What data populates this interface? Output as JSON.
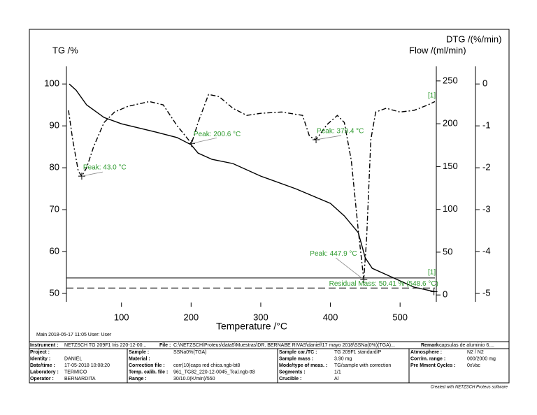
{
  "chart_data": {
    "type": "line",
    "x_label": "Temperature /°C",
    "y_label": "TG /%",
    "y2_label": "DTG /(%/min)",
    "y3_label": "Flow /(ml/min)",
    "xlim": [
      21,
      550
    ],
    "xticks": [
      100,
      200,
      300,
      400,
      500
    ],
    "ylim": [
      48,
      104.2
    ],
    "yticks": [
      50,
      60,
      70,
      80,
      90,
      100
    ],
    "y2lim": [
      -5.2,
      0.42
    ],
    "y2ticks": [
      0,
      -1,
      -2,
      -3,
      -4,
      -5
    ],
    "y3lim": [
      -8,
      267
    ],
    "y3ticks": [
      0,
      50,
      100,
      150,
      200,
      250
    ],
    "series": [
      {
        "axis": "y",
        "style": "solid",
        "color": "#000000",
        "x": [
          25,
          35,
          50,
          75,
          100,
          150,
          180,
          200,
          210,
          230,
          260,
          300,
          350,
          400,
          420,
          440,
          450,
          460,
          480,
          500,
          520,
          550
        ],
        "values": [
          100,
          98.5,
          95,
          92,
          90.5,
          88.5,
          87.2,
          85.5,
          83.5,
          82,
          81,
          78,
          75,
          71.5,
          68.5,
          64.5,
          58.5,
          56,
          54.5,
          53,
          51.5,
          50.4
        ]
      },
      {
        "axis": "y2",
        "style": "dashdot",
        "color": "#000000",
        "x": [
          24,
          30,
          38,
          43,
          50,
          60,
          75,
          90,
          110,
          140,
          160,
          180,
          200.6,
          210,
          225,
          240,
          260,
          280,
          300,
          330,
          360,
          370,
          379.4,
          395,
          410,
          420,
          430,
          440,
          447.9,
          452,
          458,
          465,
          480,
          500,
          520,
          540,
          550
        ],
        "values": [
          -0.63,
          -1.33,
          -2.08,
          -2.2,
          -2.0,
          -1.5,
          -0.92,
          -0.67,
          -0.53,
          -0.42,
          -0.5,
          -1.0,
          -1.42,
          -0.92,
          -0.25,
          -0.3,
          -0.58,
          -0.75,
          -0.7,
          -0.67,
          -0.75,
          -1.25,
          -1.33,
          -0.97,
          -0.75,
          -0.92,
          -1.83,
          -3.5,
          -4.67,
          -3.67,
          -1.33,
          -0.67,
          -0.58,
          -0.67,
          -0.63,
          -0.5,
          -0.42
        ]
      }
    ],
    "reference_lines": [
      {
        "value": 53.7,
        "style": "solid"
      },
      {
        "value": 51.3,
        "style": "dashed"
      }
    ],
    "annotations": [
      {
        "text": "Peak: 43.0 °C",
        "x": 43,
        "y": -2.2
      },
      {
        "text": "Peak: 200.6 °C",
        "x": 200.6,
        "y": -1.42
      },
      {
        "text": "Peak: 379.4 °C",
        "x": 379.4,
        "y": -1.33
      },
      {
        "text": "Peak: 447.9 °C",
        "x": 447.9,
        "y": -4.67
      },
      {
        "text": "Residual Mass: 50.41 % (548.6 °C)",
        "x": 548.6,
        "y": 50.41
      }
    ],
    "curve_tags": [
      "[1]",
      "[1]"
    ]
  },
  "footer": {
    "main": "Main   2018-05-17 11:05   User: User",
    "credit": "Created with NETZSCH Proteus software"
  },
  "info_header": [
    {
      "label": "Instrument :",
      "value": "NETZSCH TG 209F1 Iris 220-12-00..."
    },
    {
      "label": "File :",
      "value": "C:\\NETZSCH\\Proteus\\data5\\Muestras\\DR. BERNABE RIVAS\\daniel\\17 mayo 2018\\SSNa(0%)(TGA)..."
    },
    {
      "label": "Remark :",
      "value": "capsulas de aluminio 6...."
    }
  ],
  "info_rows": [
    [
      {
        "label": "Project :"
      },
      {
        "label": "Sample :",
        "value": "SSNa0%(TGA)"
      },
      {
        "label": "Sample car./TC :",
        "value": "TG 209F1 standard/P"
      },
      {
        "label": "Atmosphere :",
        "value": "N2 / N2"
      }
    ],
    [
      {
        "label": "Identity :",
        "value": "DANIEL"
      },
      {
        "label": "Material :"
      },
      {
        "label": "Sample mass :",
        "value": "3.90 mg"
      },
      {
        "label": "Corr/m. range :",
        "value": "000/2000 mg"
      }
    ],
    [
      {
        "label": "Date/time :",
        "value": "17-05-2018 10:08:20"
      },
      {
        "label": "Correction file :",
        "value": "corr(10)caps red chica.ngb-bt8"
      },
      {
        "label": "Mode/type of meas. :",
        "value": "TG/sample with correction"
      },
      {
        "label": "Pre Mment Cycles :",
        "value": "0xVac"
      }
    ],
    [
      {
        "label": "Laboratory :",
        "value": "TERMICO"
      },
      {
        "label": "Temp. calib. file :",
        "value": "961_TG82_220-12-0045_Tcal.ngb-tt8"
      },
      {
        "label": "Segments :",
        "value": "1/1"
      }
    ],
    [
      {
        "label": "Operator :",
        "value": "BERNARDITA"
      },
      {
        "label": "Range :",
        "value": "30/10.0(K/min)/550"
      },
      {
        "label": "Crucible :",
        "value": "Al"
      }
    ]
  ]
}
